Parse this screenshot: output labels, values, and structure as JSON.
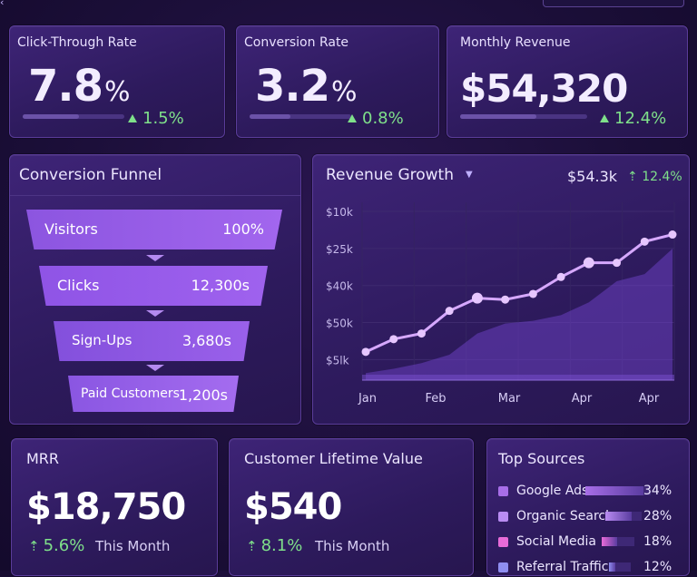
{
  "kpis": [
    {
      "title": "Click-Through Rate",
      "value": "7.8",
      "unit": "%",
      "delta": "1.5%",
      "progress": 0.55
    },
    {
      "title": "Conversion Rate",
      "value": "3.2",
      "unit": "%",
      "delta": "0.8%",
      "progress": 0.4
    },
    {
      "title": "Monthly Revenue",
      "value": "$54,320",
      "unit": "",
      "delta": "12.4%",
      "progress": 0.6
    }
  ],
  "funnel": {
    "title": "Conversion Funnel",
    "steps": [
      {
        "label": "Visitors",
        "value": "100%"
      },
      {
        "label": "Clicks",
        "value": "12,300s"
      },
      {
        "label": "Sign-Ups",
        "value": "3,680s"
      },
      {
        "label": "Paid Customers",
        "value": "1,200s"
      }
    ]
  },
  "revenue": {
    "title": "Revenue Growth",
    "total": "$54.3k",
    "delta": "12.4%"
  },
  "chart_data": {
    "type": "line",
    "title": "Revenue Growth",
    "y_tick_labels": [
      "$10k",
      "$25k",
      "$40k",
      "$50k",
      "$5lk"
    ],
    "x_tick_labels": [
      "Jan",
      "Feb",
      "Mar",
      "Apr",
      "Apr"
    ],
    "grid": true,
    "series": [
      {
        "values": [
          0.2,
          0.29,
          0.33,
          0.49,
          0.58,
          0.57,
          0.61,
          0.73,
          0.83,
          0.83,
          0.98,
          1.03
        ]
      }
    ],
    "area_values": [
      0.05,
      0.08,
      0.12,
      0.18,
      0.33,
      0.4,
      0.42,
      0.46,
      0.55,
      0.7,
      0.75,
      0.93
    ]
  },
  "mrr": {
    "title": "MRR",
    "value": "$18,750",
    "delta": "5.6%",
    "sub": "This Month"
  },
  "clv": {
    "title": "Customer Lifetime Value",
    "value": "$540",
    "delta": "8.1%",
    "sub": "This Month"
  },
  "sources": {
    "title": "Top Sources",
    "items": [
      {
        "name": "Google Ads",
        "pct": "34%",
        "share": 0.34,
        "color": "#a86ee8"
      },
      {
        "name": "Organic Search",
        "pct": "28%",
        "share": 0.28,
        "color": "#b98cf2"
      },
      {
        "name": "Social Media",
        "pct": "18%",
        "share": 0.18,
        "color": "#e86bd8"
      },
      {
        "name": "Referral Traffic",
        "pct": "12%",
        "share": 0.12,
        "color": "#8f8ef0"
      }
    ]
  },
  "colors": {
    "accent": "#9c5ff0",
    "positive": "#7fe08a",
    "line": "#d6a8ff"
  }
}
